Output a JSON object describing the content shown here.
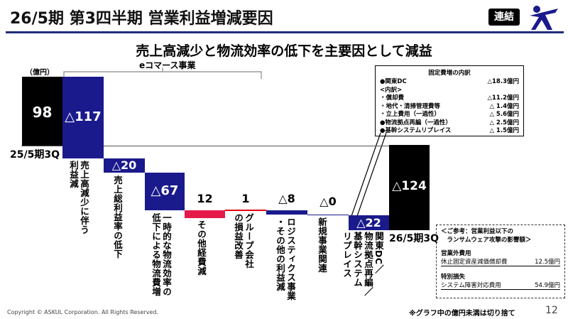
{
  "header": {
    "title": "26/5期 第3四半期 営業利益増減要因",
    "badge": "連結"
  },
  "subtitle": "売上高減少と物流効率の低下を主要因として減益",
  "unit": "（億円）",
  "bracket_label": "eコマース事業",
  "start_label": "25/5期3Q",
  "end_label": "26/5期3Q",
  "bars": [
    {
      "label": "98"
    },
    {
      "label": "△117"
    },
    {
      "label": "△20"
    },
    {
      "label": "△67"
    },
    {
      "label": "12"
    },
    {
      "label": "1"
    },
    {
      "label": "△8"
    },
    {
      "label": "△0"
    },
    {
      "label": "△22"
    },
    {
      "label": "△124"
    }
  ],
  "categories": [
    "売上高減少に伴う\n利益減",
    "売上総利益率の低下",
    "一時的な物流効率の\n低下による物流費増",
    "その他経費減",
    "グループ会社\nの損益改善",
    "ロジスティクス事業\n・その他の利益減",
    "新規事業関連",
    "関東DC／\n物流拠点再編／\n基幹システム\nリプレイス"
  ],
  "fixed_costs": {
    "title": "固定費増の内訳",
    "rows": [
      {
        "label": "●関東DC",
        "value": "△18.3億円"
      },
      {
        "label": "<内訳>",
        "value": ""
      },
      {
        "label": "・償却費",
        "value": "△11.2億円"
      },
      {
        "label": "・地代・清掃管理費等",
        "value": "△ 1.4億円"
      },
      {
        "label": "・立上費用（一過性）",
        "value": "△ 5.6億円"
      },
      {
        "label": "●物流拠点再編（一過性）",
        "value": "△ 2.5億円"
      },
      {
        "label": "●基幹システムリプレイス",
        "value": "△ 1.5億円"
      }
    ]
  },
  "reference": {
    "title": "＜ご参考：営業利益以下の\n　ランサムウェア攻撃の影響額＞",
    "sections": [
      {
        "heading": "営業外費用",
        "item": "休止固定資産減価償却費",
        "value": "12.5億円"
      },
      {
        "heading": "特別損失",
        "item": "システム障害対応費用",
        "value": "54.9億円"
      }
    ]
  },
  "footer": {
    "copyright": "Copyright © ASKUL Corporation. All Rights Reserved.",
    "note": "※グラフ中の億円未満は切り捨て",
    "page": "12"
  },
  "colors": {
    "header_line": "#1f2d7a",
    "navy": "#1a1a8c",
    "black": "#000000",
    "pink": "#e6194b",
    "red_line": "#e60012"
  }
}
